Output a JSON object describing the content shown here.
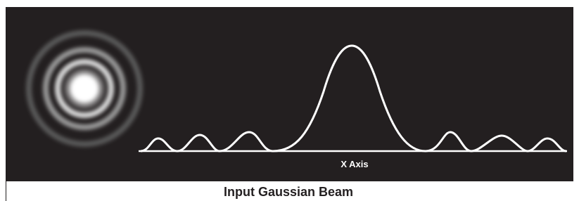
{
  "diagram": {
    "axis_label": "X Axis",
    "caption": "Input Gaussian Beam"
  }
}
